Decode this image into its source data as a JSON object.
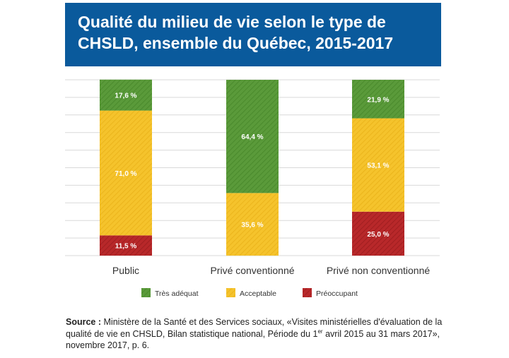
{
  "title": {
    "line1": "Qualité du milieu de vie selon le type de",
    "line2": "CHSLD, ensemble du Québec, 2015-2017"
  },
  "colors": {
    "tres_adequat": "#5a9a3a",
    "acceptable": "#f5c32c",
    "preoccupant": "#b8282a",
    "title_bg": "#0a5a9c"
  },
  "chart_data": {
    "type": "bar",
    "stacked": true,
    "normalized": true,
    "categories": [
      "Public",
      "Privé conventionné",
      "Privé non conventionné"
    ],
    "series": [
      {
        "name": "Préoccupant",
        "values": [
          11.5,
          0,
          25.0
        ],
        "labels": [
          "11,5 %",
          "",
          "25,0 %"
        ],
        "color": "#b8282a"
      },
      {
        "name": "Acceptable",
        "values": [
          71.0,
          35.6,
          53.1
        ],
        "labels": [
          "71,0 %",
          "35,6 %",
          "53,1 %"
        ],
        "color": "#f5c32c"
      },
      {
        "name": "Très adéquat",
        "values": [
          17.6,
          64.4,
          21.9
        ],
        "labels": [
          "17,6 %",
          "64,4 %",
          "21,9 %"
        ],
        "color": "#5a9a3a"
      }
    ],
    "legend": [
      "Très adéquat",
      "Acceptable",
      "Préoccupant"
    ],
    "legend_position": "bottom",
    "ylim": [
      0,
      100
    ],
    "grid": true
  },
  "source": {
    "label": "Source :",
    "text_part1": "Ministère de la Santé et des Services sociaux, «Visites ministérielles d'évaluation de la qualité de vie en CHSLD, Bilan statistique national, Période du 1",
    "sup": "er",
    "text_part2": " avril 2015 au 31 mars 2017», novembre 2017, p. 6."
  }
}
